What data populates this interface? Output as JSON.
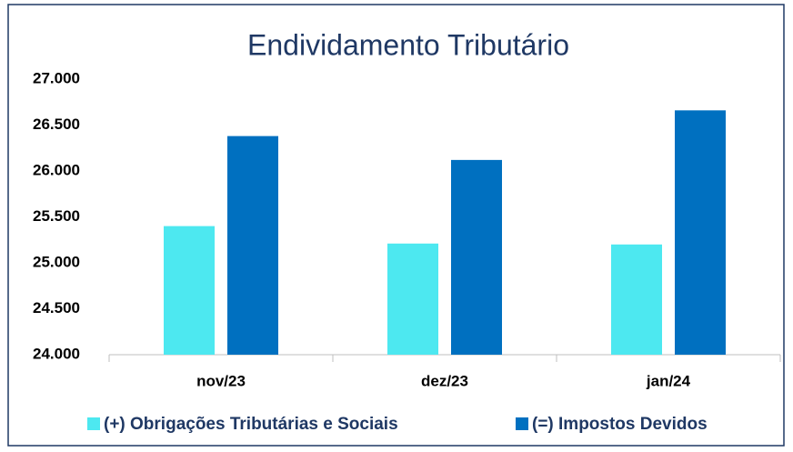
{
  "chart_data": {
    "type": "bar",
    "title": "Endividamento Tributário",
    "categories": [
      "nov/23",
      "dez/23",
      "jan/24"
    ],
    "series": [
      {
        "name": "(+) Obrigações Tributárias e Sociais",
        "color": "#4de8f0",
        "values": [
          25400,
          25210,
          25200
        ]
      },
      {
        "name": "(=) Impostos Devidos",
        "color": "#0070c0",
        "values": [
          26380,
          26120,
          26660
        ]
      }
    ],
    "ylim": [
      24000,
      27000
    ],
    "yticks": [
      {
        "value": 24000,
        "label": "24.000"
      },
      {
        "value": 24500,
        "label": "24.500"
      },
      {
        "value": 25000,
        "label": "25.000"
      },
      {
        "value": 25500,
        "label": "25.500"
      },
      {
        "value": 26000,
        "label": "26.000"
      },
      {
        "value": 26500,
        "label": "26.500"
      },
      {
        "value": 27000,
        "label": "27.000"
      }
    ],
    "grid": false,
    "legend": "bottom"
  }
}
